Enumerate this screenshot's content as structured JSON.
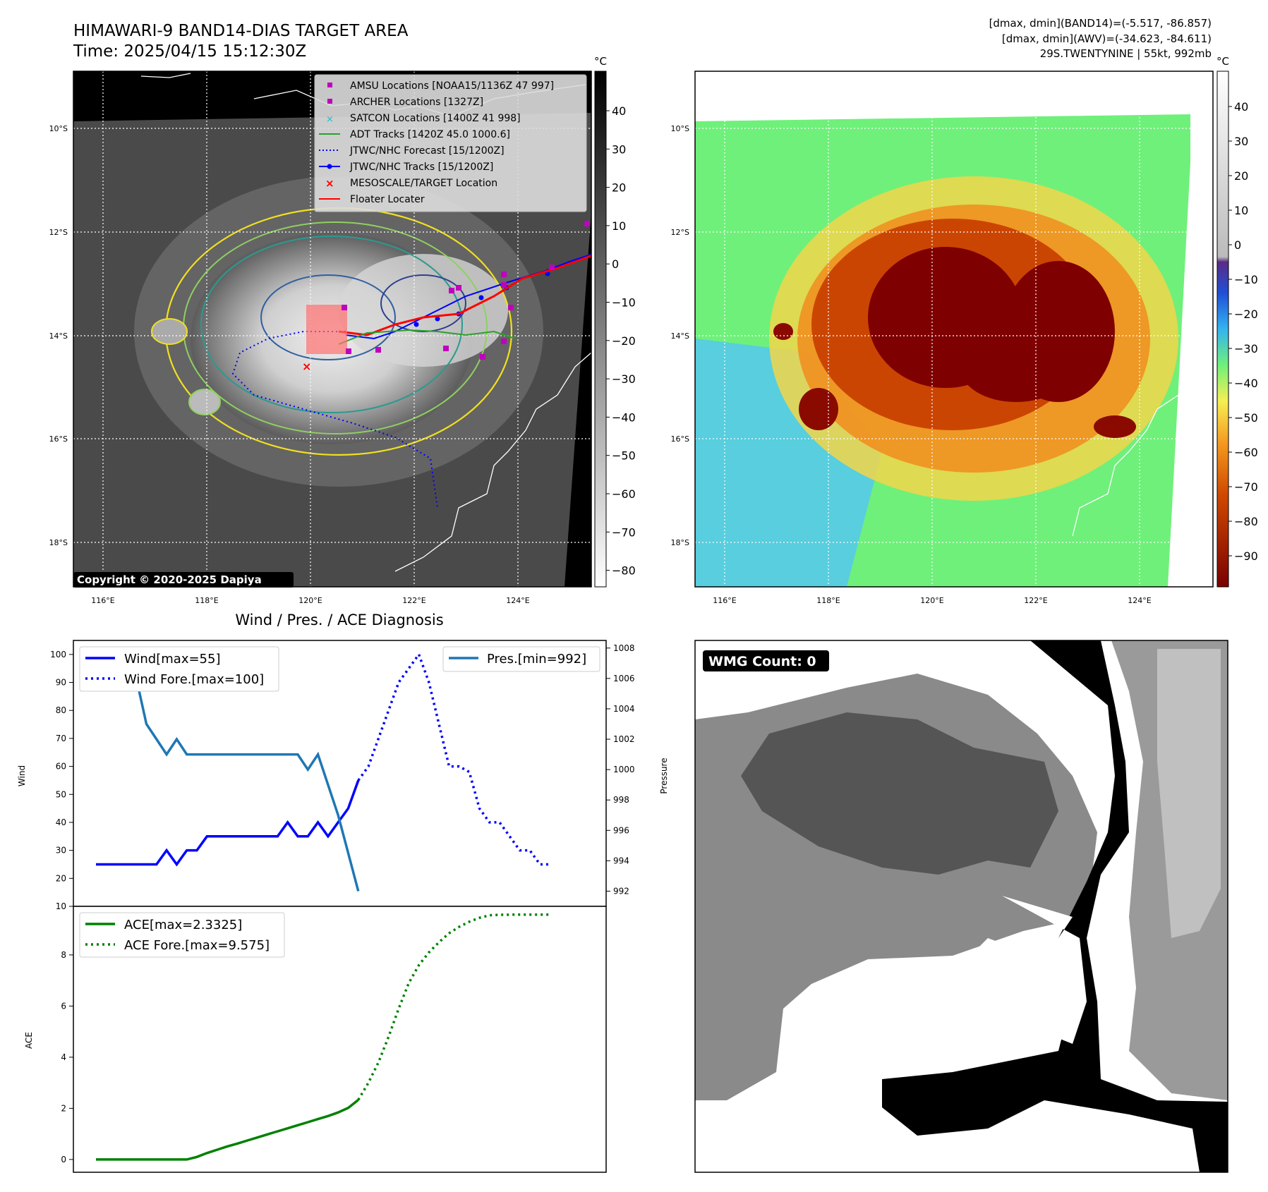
{
  "header": {
    "title_line1": "HIMAWARI-9 BAND14-DIAS TARGET AREA",
    "title_line2": "Time: 2025/04/15 15:12:30Z",
    "info_line1": "[dmax, dmin](BAND14)=(-5.517, -86.857)",
    "info_line2": "[dmax, dmin](AWV)=(-34.623, -84.611)",
    "info_line3": "29S.TWENTYNINE | 55kt, 992mb"
  },
  "map": {
    "lat_labels": [
      "10°S",
      "12°S",
      "14°S",
      "16°S",
      "18°S"
    ],
    "lon_labels": [
      "116°E",
      "118°E",
      "120°E",
      "122°E",
      "124°E"
    ],
    "copyright": "Copyright © 2020-2025 Dapiya",
    "unit": "°C",
    "legend": [
      {
        "label": "AMSU Locations [NOAA15/1136Z 47 997]",
        "color": "#bf00bf"
      },
      {
        "label": "ARCHER Locations [1327Z]",
        "color": "#bf00bf"
      },
      {
        "label": "SATCON Locations [1400Z 41 998]",
        "color": "#17becf"
      },
      {
        "label": "ADT Tracks [1420Z 45.0 1000.6]",
        "color": "#2ca02c"
      },
      {
        "label": "JTWC/NHC Forecast [15/1200Z]",
        "color": "#0000ff"
      },
      {
        "label": "JTWC/NHC Tracks [15/1200Z]",
        "color": "#0000ff"
      },
      {
        "label": "MESOSCALE/TARGET Location",
        "color": "#ff0000"
      },
      {
        "label": "Floater Locater",
        "color": "#ff0000"
      }
    ],
    "gray_colorbar_ticks": [
      "40",
      "30",
      "20",
      "10",
      "0",
      "−10",
      "−20",
      "−30",
      "−40",
      "−50",
      "−60",
      "−70",
      "−80"
    ],
    "color_colorbar_ticks": [
      "40",
      "30",
      "20",
      "10",
      "0",
      "−10",
      "−20",
      "−30",
      "−40",
      "−50",
      "−60",
      "−70",
      "−80",
      "−90"
    ]
  },
  "wmg": {
    "label": "WMG Count: 0"
  },
  "chart_data": [
    {
      "type": "line",
      "title": "Wind / Pres. / ACE Diagnosis",
      "ylabel": "Wind",
      "ylabel_right": "Pressure",
      "ylim": [
        10,
        105
      ],
      "ylim_right": [
        991,
        1008.5
      ],
      "y_ticks": [
        10,
        20,
        30,
        40,
        50,
        60,
        70,
        80,
        90,
        100
      ],
      "y_ticks_right": [
        992,
        994,
        996,
        998,
        1000,
        1002,
        1004,
        1006,
        1008
      ],
      "legend_left": [
        "Wind[max=55]",
        "Wind Fore.[max=100]"
      ],
      "legend_right": [
        "Pres.[min=992]"
      ],
      "series": [
        {
          "name": "Wind[max=55]",
          "style": "solid",
          "color": "#0000ff",
          "x": [
            0,
            1,
            2,
            3,
            4,
            5,
            6,
            7,
            8,
            9,
            10,
            11,
            12,
            13,
            14,
            15,
            16,
            17,
            18,
            19,
            20,
            21,
            22,
            23,
            24,
            25,
            26
          ],
          "values": [
            25,
            25,
            25,
            25,
            25,
            25,
            25,
            30,
            25,
            30,
            30,
            35,
            35,
            35,
            35,
            35,
            35,
            35,
            35,
            40,
            35,
            35,
            40,
            35,
            40,
            45,
            55
          ]
        },
        {
          "name": "Wind Fore.[max=100]",
          "style": "dotted",
          "color": "#0000ff",
          "x": [
            26,
            27,
            28,
            29,
            30,
            31,
            32,
            33,
            34,
            35,
            36,
            37,
            38,
            39,
            40,
            41,
            42,
            43,
            44,
            45
          ],
          "values": [
            55,
            60,
            70,
            80,
            90,
            95,
            100,
            90,
            75,
            60,
            60,
            58,
            45,
            40,
            40,
            35,
            30,
            30,
            25,
            25
          ]
        },
        {
          "name": "Pres.[min=992]",
          "style": "solid",
          "color": "#1f77b4",
          "axis": "right",
          "x": [
            0,
            1,
            2,
            3,
            4,
            5,
            6,
            7,
            8,
            9,
            10,
            11,
            12,
            13,
            14,
            15,
            16,
            17,
            18,
            19,
            20,
            21,
            22,
            23,
            24,
            25,
            26
          ],
          "values": [
            1008,
            1007,
            1007,
            1006,
            1006,
            1003,
            1002,
            1001,
            1002,
            1001,
            1001,
            1001,
            1001,
            1001,
            1001,
            1001,
            1001,
            1001,
            1001,
            1001,
            1001,
            1000,
            1001,
            999,
            997,
            994.5,
            992
          ]
        }
      ]
    },
    {
      "type": "line",
      "ylabel": "ACE",
      "ylim": [
        -0.5,
        9.9
      ],
      "y_ticks": [
        0,
        2,
        4,
        6,
        8,
        10
      ],
      "legend": [
        "ACE[max=2.3325]",
        "ACE Fore.[max=9.575]"
      ],
      "series": [
        {
          "name": "ACE[max=2.3325]",
          "style": "solid",
          "color": "#008000",
          "x": [
            0,
            1,
            2,
            3,
            4,
            5,
            6,
            7,
            8,
            9,
            10,
            11,
            12,
            13,
            14,
            15,
            16,
            17,
            18,
            19,
            20,
            21,
            22,
            23,
            24,
            25,
            26
          ],
          "values": [
            0,
            0,
            0,
            0,
            0,
            0,
            0,
            0,
            0,
            0,
            0.1,
            0.25,
            0.38,
            0.51,
            0.62,
            0.74,
            0.86,
            0.98,
            1.1,
            1.22,
            1.34,
            1.46,
            1.58,
            1.7,
            1.84,
            2.02,
            2.33
          ]
        },
        {
          "name": "ACE Fore.[max=9.575]",
          "style": "dotted",
          "color": "#008000",
          "x": [
            26,
            27,
            28,
            29,
            30,
            31,
            32,
            33,
            34,
            35,
            36,
            37,
            38,
            39,
            40,
            41,
            42,
            43,
            44,
            45
          ],
          "values": [
            2.33,
            3.0,
            3.8,
            4.8,
            5.9,
            6.9,
            7.6,
            8.1,
            8.5,
            8.85,
            9.1,
            9.3,
            9.45,
            9.55,
            9.57,
            9.575,
            9.575,
            9.575,
            9.575,
            9.575
          ]
        }
      ]
    }
  ]
}
